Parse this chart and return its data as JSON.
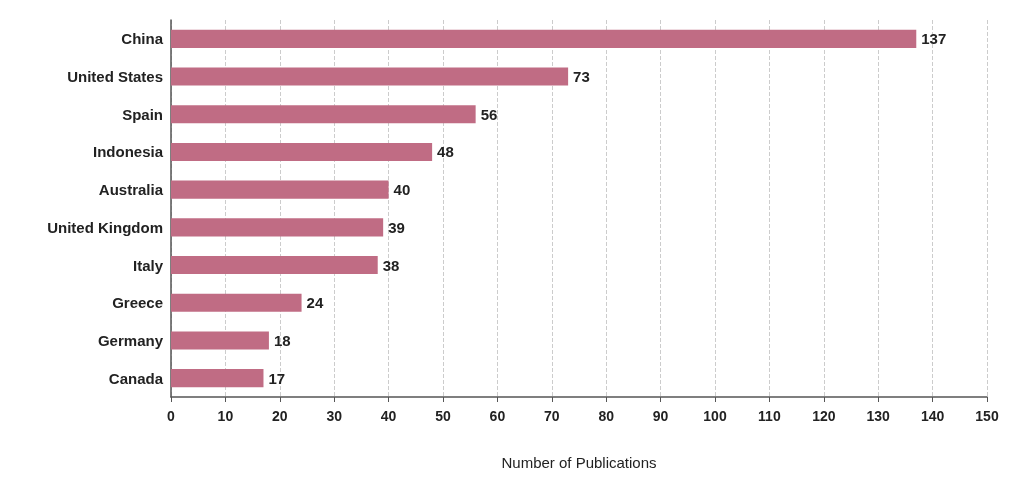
{
  "chart_data": {
    "type": "bar",
    "orientation": "horizontal",
    "xlabel": "Number of Publications",
    "categories": [
      "China",
      "United States",
      "Spain",
      "Indonesia",
      "Australia",
      "United Kingdom",
      "Italy",
      "Greece",
      "Germany",
      "Canada"
    ],
    "values": [
      137,
      73,
      56,
      48,
      40,
      39,
      38,
      24,
      18,
      17
    ],
    "color": "#c06c84",
    "xlim": [
      0,
      150
    ],
    "xticks": [
      0,
      10,
      20,
      30,
      40,
      50,
      60,
      70,
      80,
      90,
      100,
      110,
      120,
      130,
      140,
      150
    ],
    "grid": "x",
    "data_labels": true
  }
}
